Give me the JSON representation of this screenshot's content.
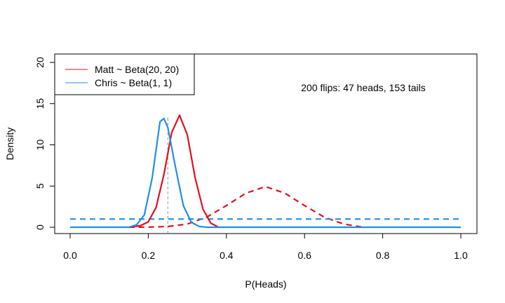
{
  "chart_data": {
    "type": "line",
    "xlabel": "P(Heads)",
    "ylabel": "Density",
    "xlim": [
      0,
      1
    ],
    "ylim": [
      0,
      20
    ],
    "x_ticks": [
      "0.0",
      "0.2",
      "0.4",
      "0.6",
      "0.8",
      "1.0"
    ],
    "y_ticks": [
      "0",
      "5",
      "10",
      "15",
      "20"
    ],
    "grid": false,
    "legend_position": "top-left",
    "legend": [
      {
        "label": "Matt ~ Beta(20, 20)",
        "color": "#e0101c"
      },
      {
        "label": "Chris ~ Beta(1, 1)",
        "color": "#1f8fe5"
      }
    ],
    "annotation": "200 flips: 47 heads, 153 tails",
    "reference_line": {
      "x": 0.25,
      "style": "dashed",
      "color": "#999999"
    },
    "series": [
      {
        "color": "#e0101c",
        "style": "dashed",
        "x": [
          0.15,
          0.2,
          0.25,
          0.3,
          0.35,
          0.4,
          0.45,
          0.5,
          0.55,
          0.6,
          0.65,
          0.7,
          0.75
        ],
        "y": [
          0.0,
          0.02,
          0.09,
          0.39,
          1.23,
          2.63,
          4.13,
          4.94,
          4.13,
          2.63,
          1.23,
          0.39,
          0.0
        ]
      },
      {
        "color": "#1f8fe5",
        "style": "dashed",
        "x": [
          0.0,
          1.0
        ],
        "y": [
          1.0,
          1.0
        ]
      },
      {
        "color": "#e0101c",
        "style": "solid",
        "x": [
          0.15,
          0.18,
          0.2,
          0.22,
          0.24,
          0.26,
          0.28,
          0.3,
          0.32,
          0.34,
          0.36,
          0.38
        ],
        "y": [
          0.0,
          0.2,
          0.65,
          2.4,
          6.4,
          11.5,
          13.6,
          11.2,
          6.0,
          2.2,
          0.5,
          0.0
        ]
      },
      {
        "color": "#1f8fe5",
        "style": "solid",
        "x": [
          0.0,
          0.15,
          0.17,
          0.19,
          0.21,
          0.23,
          0.24,
          0.25,
          0.27,
          0.29,
          0.31,
          0.33,
          0.35,
          1.0
        ],
        "y": [
          0.0,
          0.0,
          0.3,
          1.5,
          6.0,
          12.8,
          13.2,
          12.1,
          7.2,
          2.6,
          0.6,
          0.1,
          0.0,
          0.0
        ]
      }
    ]
  }
}
